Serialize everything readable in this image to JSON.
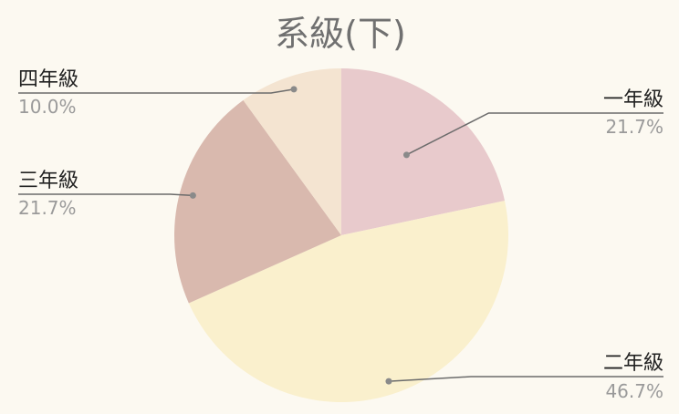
{
  "chart_data": {
    "type": "pie",
    "title": "系級(下)",
    "categories": [
      "一年級",
      "二年級",
      "三年級",
      "四年級"
    ],
    "values": [
      21.7,
      46.7,
      21.7,
      10.0
    ],
    "percent_labels": [
      "21.7%",
      "46.7%",
      "21.7%",
      "10.0%"
    ],
    "colors": [
      "#e8cacc",
      "#faf0cd",
      "#d9b9ae",
      "#f4e4d1"
    ],
    "start_angle_deg": 0,
    "direction": "clockwise",
    "legend": "none"
  }
}
